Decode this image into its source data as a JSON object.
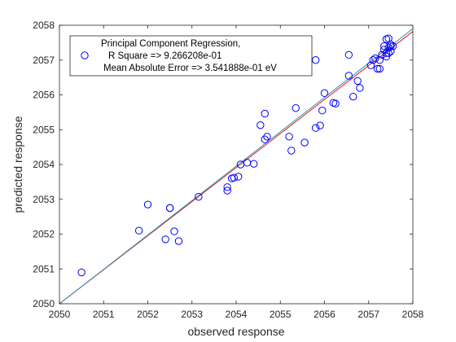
{
  "chart_data": {
    "type": "scatter",
    "title": "",
    "xlabel": "observed response",
    "ylabel": "predicted response",
    "xlim": [
      2050,
      2058
    ],
    "ylim": [
      2050,
      2058
    ],
    "xticks": [
      "2050",
      "2051",
      "2052",
      "2053",
      "2054",
      "2055",
      "2056",
      "2057",
      "2058"
    ],
    "yticks": [
      "2050",
      "2051",
      "2052",
      "2053",
      "2054",
      "2055",
      "2056",
      "2057",
      "2058"
    ],
    "grid": false,
    "legend_position": "top-left",
    "legend": {
      "series_name": "Principal Component Regression,",
      "lines": [
        "R Square => 9.266208e-01",
        "Mean Absolute Error => 3.541888e-01 eV"
      ]
    },
    "colors": {
      "points": "#0000ff",
      "fit_line_red": "#d62020",
      "fit_line_teal": "#2a8fb0"
    },
    "lines": [
      {
        "name": "",
        "color": "#d62020",
        "x": [
          2050,
          2058
        ],
        "y": [
          2050,
          2057.82
        ]
      },
      {
        "name": "",
        "color": "#2a8fb0",
        "x": [
          2050,
          2058
        ],
        "y": [
          2050,
          2057.9
        ]
      }
    ],
    "series": [
      {
        "name": "Principal Component Regression,",
        "x": [
          2050.5,
          2051.8,
          2052.0,
          2052.4,
          2052.5,
          2052.6,
          2052.7,
          2052.5,
          2053.15,
          2053.8,
          2053.8,
          2053.9,
          2053.95,
          2054.05,
          2054.1,
          2054.25,
          2054.4,
          2054.55,
          2054.65,
          2054.65,
          2054.7,
          2055.2,
          2055.25,
          2055.35,
          2055.55,
          2055.65,
          2055.8,
          2055.8,
          2055.9,
          2055.95,
          2056.0,
          2056.2,
          2056.25,
          2056.55,
          2056.55,
          2056.65,
          2056.75,
          2056.8,
          2057.05,
          2057.1,
          2057.15,
          2057.2,
          2057.25,
          2057.25,
          2057.3,
          2057.35,
          2057.35,
          2057.4,
          2057.4,
          2057.45,
          2057.45,
          2057.5,
          2057.5,
          2057.55,
          2057.45,
          2057.5,
          2057.4
        ],
        "y": [
          2050.9,
          2052.1,
          2052.85,
          2051.85,
          2052.75,
          2052.08,
          2051.8,
          2052.75,
          2053.07,
          2053.35,
          2053.25,
          2053.6,
          2053.62,
          2053.65,
          2054.0,
          2054.05,
          2054.02,
          2055.13,
          2055.46,
          2054.72,
          2054.8,
          2054.8,
          2054.4,
          2055.62,
          2054.63,
          2057.0,
          2055.05,
          2057.0,
          2055.12,
          2055.55,
          2056.05,
          2055.77,
          2055.75,
          2056.55,
          2057.15,
          2055.95,
          2056.4,
          2056.2,
          2056.85,
          2057.0,
          2057.05,
          2056.75,
          2056.75,
          2057.0,
          2057.15,
          2057.3,
          2057.4,
          2057.1,
          2057.6,
          2057.2,
          2057.35,
          2057.4,
          2057.25,
          2057.4,
          2057.62,
          2057.45,
          2057.2
        ]
      }
    ]
  }
}
